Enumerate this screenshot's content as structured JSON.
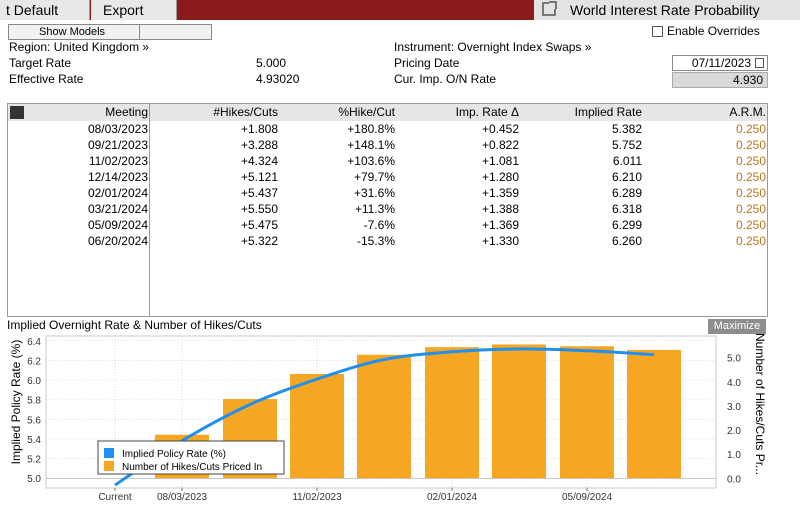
{
  "toolbar": {
    "default_label": "t Default",
    "export_label": "Export",
    "title": "World Interest Rate Probability"
  },
  "header": {
    "show_models_label": "Show Models",
    "region_label": "Region: United Kingdom »",
    "instrument_label": "Instrument: Overnight Index Swaps »",
    "enable_overrides_label": "Enable Overrides",
    "target_rate_label": "Target Rate",
    "target_rate_value": "5.000",
    "effective_rate_label": "Effective Rate",
    "effective_rate_value": "4.93020",
    "pricing_date_label": "Pricing Date",
    "pricing_date_value": "07/11/2023",
    "cur_imp_label": "Cur. Imp. O/N Rate",
    "cur_imp_value": "4.930"
  },
  "table": {
    "columns": [
      "Meeting",
      "#Hikes/Cuts",
      "%Hike/Cut",
      "Imp. Rate Δ",
      "Implied Rate",
      "A.R.M."
    ],
    "rows": [
      [
        "08/03/2023",
        "+1.808",
        "+180.8%",
        "+0.452",
        "5.382",
        "0.250"
      ],
      [
        "09/21/2023",
        "+3.288",
        "+148.1%",
        "+0.822",
        "5.752",
        "0.250"
      ],
      [
        "11/02/2023",
        "+4.324",
        "+103.6%",
        "+1.081",
        "6.011",
        "0.250"
      ],
      [
        "12/14/2023",
        "+5.121",
        "+79.7%",
        "+1.280",
        "6.210",
        "0.250"
      ],
      [
        "02/01/2024",
        "+5.437",
        "+31.6%",
        "+1.359",
        "6.289",
        "0.250"
      ],
      [
        "03/21/2024",
        "+5.550",
        "+11.3%",
        "+1.388",
        "6.318",
        "0.250"
      ],
      [
        "05/09/2024",
        "+5.475",
        "-7.6%",
        "+1.369",
        "6.299",
        "0.250"
      ],
      [
        "06/20/2024",
        "+5.322",
        "-15.3%",
        "+1.330",
        "6.260",
        "0.250"
      ]
    ]
  },
  "chart_panel": {
    "title": "Implied Overnight Rate & Number of Hikes/Cuts",
    "maximize_label": "Maximize"
  },
  "chart_data": {
    "type": "bar",
    "categories": [
      "Current",
      "08/03/2023",
      "09/21/2023",
      "11/02/2023",
      "12/14/2023",
      "02/01/2024",
      "03/21/2024",
      "05/09/2024",
      "06/20/2024"
    ],
    "x_tick_labels": [
      "Current",
      "08/03/2023",
      "11/02/2023",
      "02/01/2024",
      "05/09/2024"
    ],
    "series": [
      {
        "name": "Implied Policy Rate (%)",
        "kind": "line",
        "axis": "left",
        "color": "#1f8ff0",
        "values": [
          4.93,
          5.382,
          5.752,
          6.011,
          6.21,
          6.289,
          6.318,
          6.299,
          6.26
        ]
      },
      {
        "name": "Number of Hikes/Cuts Priced In",
        "kind": "bar",
        "axis": "right",
        "color": "#f5a623",
        "values": [
          null,
          1.808,
          3.288,
          4.324,
          5.121,
          5.437,
          5.55,
          5.475,
          5.322
        ]
      }
    ],
    "ylabel_left": "Implied Policy Rate (%)",
    "ylabel_right": "Number of Hikes/Cuts Pr...",
    "ylim_left": [
      4.9,
      6.45
    ],
    "yticks_left": [
      "6.4",
      "6.2",
      "6.0",
      "5.8",
      "5.6",
      "5.4",
      "5.2",
      "5.0"
    ],
    "ylim_right": [
      -0.4,
      5.9
    ],
    "yticks_right": [
      "5.0",
      "4.0",
      "3.0",
      "2.0",
      "1.0",
      "0.0"
    ],
    "legend_position": "bottom-left",
    "grid": true
  }
}
